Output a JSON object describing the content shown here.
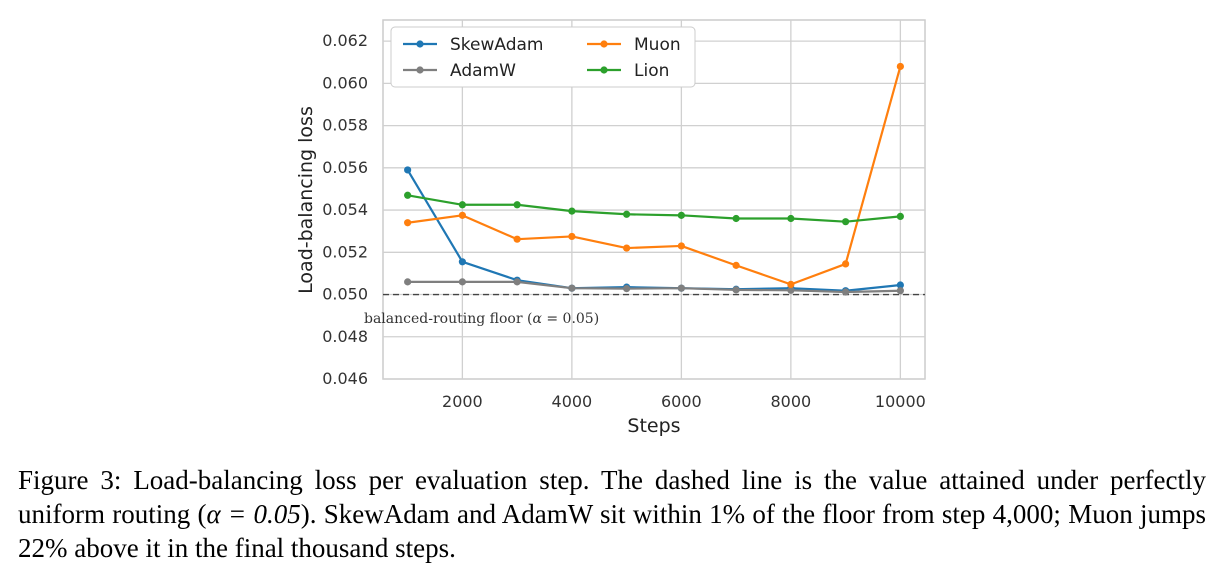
{
  "chart_data": {
    "type": "line",
    "xlabel": "Steps",
    "ylabel": "Load-balancing loss",
    "xlim": [
      550,
      10450
    ],
    "ylim": [
      0.046,
      0.063
    ],
    "xticks": [
      2000,
      4000,
      6000,
      8000,
      10000
    ],
    "xtick_labels": [
      "2000",
      "4000",
      "6000",
      "8000",
      "10000"
    ],
    "yticks": [
      0.046,
      0.048,
      0.05,
      0.052,
      0.054,
      0.056,
      0.058,
      0.06,
      0.062
    ],
    "ytick_labels": [
      "0.046",
      "0.048",
      "0.050",
      "0.052",
      "0.054",
      "0.056",
      "0.058",
      "0.060",
      "0.062"
    ],
    "grid": true,
    "legend_position": "top-left",
    "x": [
      1000,
      2000,
      3000,
      4000,
      5000,
      6000,
      7000,
      8000,
      9000,
      10000
    ],
    "series": [
      {
        "name": "SkewAdam",
        "color": "#1f77b4",
        "values": [
          0.0559,
          0.05155,
          0.05068,
          0.0503,
          0.05035,
          0.0503,
          0.05025,
          0.0503,
          0.05018,
          0.05045
        ]
      },
      {
        "name": "AdamW",
        "color": "#7f7f7f",
        "values": [
          0.0506,
          0.0506,
          0.0506,
          0.0503,
          0.05028,
          0.0503,
          0.05022,
          0.0502,
          0.05012,
          0.05018
        ]
      },
      {
        "name": "Muon",
        "color": "#ff7f0e",
        "values": [
          0.0534,
          0.05375,
          0.05262,
          0.05275,
          0.0522,
          0.0523,
          0.05138,
          0.05048,
          0.05145,
          0.0608
        ]
      },
      {
        "name": "Lion",
        "color": "#2ca02c",
        "values": [
          0.0547,
          0.05425,
          0.05425,
          0.05395,
          0.0538,
          0.05375,
          0.0536,
          0.0536,
          0.05345,
          0.0537
        ]
      }
    ],
    "reference_line": {
      "y": 0.05,
      "style": "dashed",
      "color": "#444444"
    },
    "annotation": {
      "text_before": "balanced-routing floor (",
      "symbol": "α",
      "text_after": " = 0.05)"
    }
  },
  "caption": {
    "label": "Figure 3:",
    "text_1": " Load-balancing loss per evaluation step.  The dashed line is the value attained under perfectly uniform routing (",
    "math": "α = 0.05",
    "text_2": "). SkewAdam and AdamW sit within 1% of the floor from step 4,000; Muon jumps 22% above it in the final thousand steps."
  }
}
